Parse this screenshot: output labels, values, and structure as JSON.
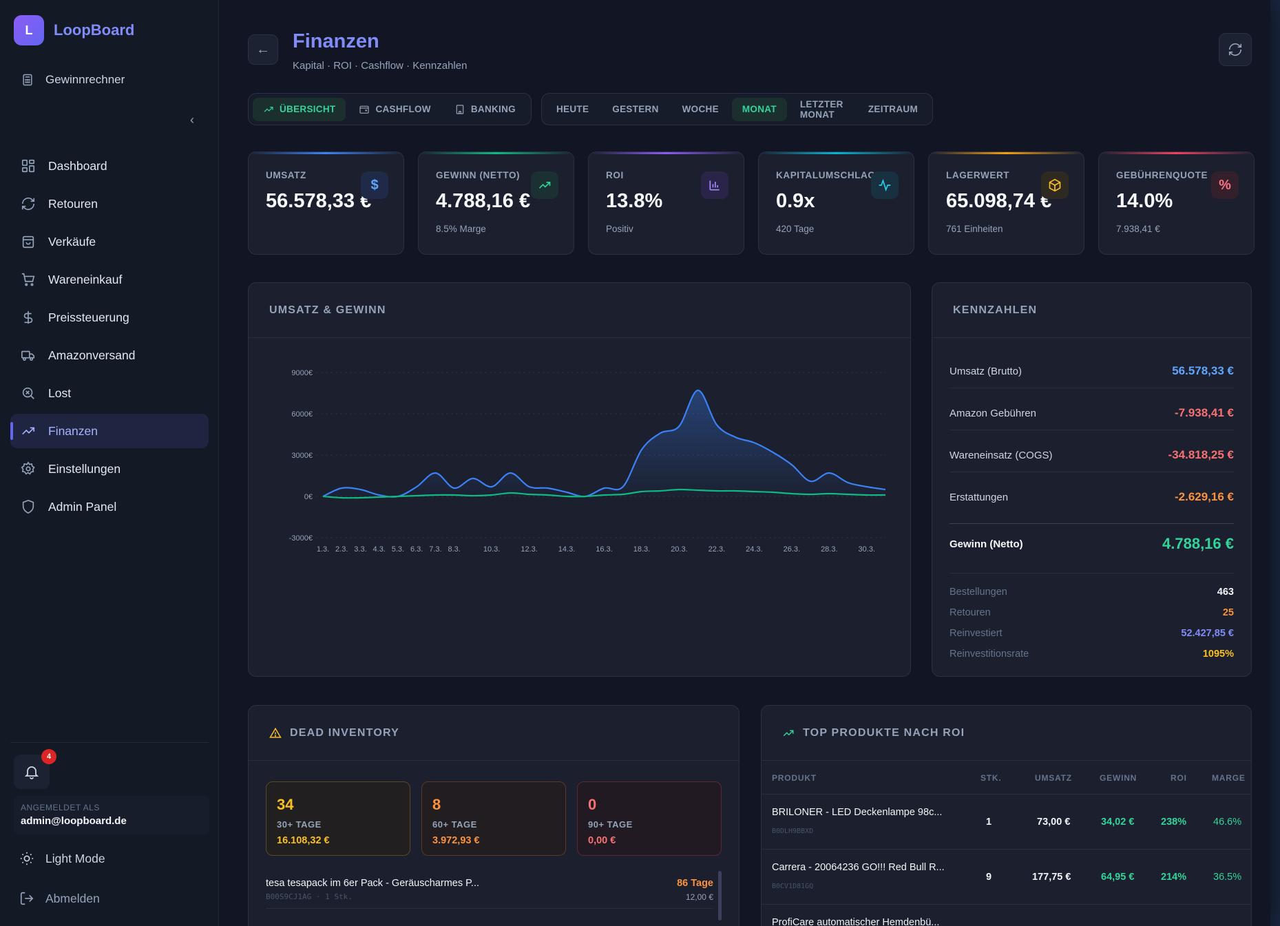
{
  "brand": {
    "logo_letter": "L",
    "name": "LoopBoard"
  },
  "sidebar": {
    "calc_label": "Gewinnrechner",
    "collapse_icon": "chevron-left-icon",
    "items": [
      {
        "label": "Dashboard",
        "icon": "grid-icon"
      },
      {
        "label": "Retouren",
        "icon": "refresh-icon"
      },
      {
        "label": "Verkäufe",
        "icon": "bag-icon"
      },
      {
        "label": "Wareneinkauf",
        "icon": "cart-icon"
      },
      {
        "label": "Preissteuerung",
        "icon": "dollar-icon"
      },
      {
        "label": "Amazonversand",
        "icon": "truck-icon"
      },
      {
        "label": "Lost",
        "icon": "search-x-icon"
      },
      {
        "label": "Finanzen",
        "icon": "trend-icon",
        "active": true
      },
      {
        "label": "Einstellungen",
        "icon": "gear-icon"
      },
      {
        "label": "Admin Panel",
        "icon": "shield-icon"
      }
    ],
    "notif_count": "4",
    "logged_in_label": "ANGEMELDET ALS",
    "email": "admin@loopboard.de",
    "light_mode": "Light Mode",
    "logout": "Abmelden"
  },
  "header": {
    "title": "Finanzen",
    "subtitle": "Kapital · ROI · Cashflow · Kennzahlen"
  },
  "view_tabs": [
    {
      "label": "ÜBERSICHT",
      "active": true
    },
    {
      "label": "CASHFLOW",
      "active": false
    },
    {
      "label": "BANKING",
      "active": false
    }
  ],
  "period_tabs": [
    {
      "label": "HEUTE"
    },
    {
      "label": "GESTERN"
    },
    {
      "label": "WOCHE"
    },
    {
      "label": "MONAT",
      "active": true
    },
    {
      "label": "LETZTER MONAT"
    },
    {
      "label": "ZEITRAUM"
    }
  ],
  "kpis": [
    {
      "label": "UMSATZ",
      "value": "56.578,33 €",
      "sub": "",
      "icon": "$",
      "accent": "#3b82f6"
    },
    {
      "label": "GEWINN (NETTO)",
      "value": "4.788,16 €",
      "sub": "8.5% Marge",
      "icon": "trend-icon",
      "accent": "#10b981"
    },
    {
      "label": "ROI",
      "value": "13.8%",
      "sub": "Positiv",
      "icon": "bar-chart-icon",
      "accent": "#8b5cf6"
    },
    {
      "label": "KAPITALUMSCHLAG",
      "value": "0.9x",
      "sub": "420 Tage",
      "icon": "activity-icon",
      "accent": "#06b6d4"
    },
    {
      "label": "LAGERWERT",
      "value": "65.098,74 €",
      "sub": "761 Einheiten",
      "icon": "box-icon",
      "accent": "#f59e0b"
    },
    {
      "label": "GEBÜHRENQUOTE",
      "value": "14.0%",
      "sub": "7.938,41 €",
      "icon": "%",
      "accent": "#f43f5e"
    }
  ],
  "chart_panel": {
    "title": "UMSATZ & GEWINN"
  },
  "chart_data": {
    "type": "area",
    "title": "",
    "y_ticks": [
      "9000€",
      "6000€",
      "3000€",
      "0€",
      "-3000€"
    ],
    "ylim": [
      -3000,
      9000
    ],
    "x_ticks": [
      "1.3.",
      "2.3.",
      "3.3.",
      "4.3.",
      "5.3.",
      "6.3.",
      "7.3.",
      "8.3.",
      "10.3.",
      "12.3.",
      "14.3.",
      "16.3.",
      "18.3.",
      "20.3.",
      "22.3.",
      "24.3.",
      "26.3.",
      "28.3.",
      "30.3."
    ],
    "x": [
      1,
      2,
      3,
      4,
      5,
      6,
      7,
      8,
      9,
      10,
      11,
      12,
      13,
      14,
      15,
      16,
      17,
      18,
      19,
      20,
      21,
      22,
      23,
      24,
      25,
      26,
      27,
      28,
      29,
      30,
      31
    ],
    "series": [
      {
        "color": "#3b82f6",
        "values": [
          0,
          600,
          500,
          100,
          0,
          700,
          1700,
          600,
          1300,
          700,
          1700,
          700,
          600,
          300,
          0,
          600,
          700,
          3400,
          4600,
          5100,
          7700,
          5200,
          4300,
          3900,
          3200,
          2300,
          1100,
          1700,
          1000,
          700,
          500
        ]
      },
      {
        "color": "#10b981",
        "values": [
          0,
          -100,
          -100,
          -50,
          0,
          50,
          100,
          100,
          50,
          100,
          250,
          150,
          100,
          0,
          0,
          100,
          150,
          350,
          400,
          500,
          450,
          400,
          400,
          350,
          300,
          200,
          150,
          200,
          150,
          100,
          100
        ]
      }
    ],
    "grid": true
  },
  "kennzahlen": {
    "title": "KENNZAHLEN",
    "rows": [
      {
        "label": "Umsatz (Brutto)",
        "value": "56.578,33 €",
        "color": "#60a5fa"
      },
      {
        "label": "Amazon Gebühren",
        "value": "-7.938,41 €",
        "color": "#f87171"
      },
      {
        "label": "Wareneinsatz (COGS)",
        "value": "-34.818,25 €",
        "color": "#f87171"
      },
      {
        "label": "Erstattungen",
        "value": "-2.629,16 €",
        "color": "#fb923c"
      }
    ],
    "total": {
      "label": "Gewinn (Netto)",
      "value": "4.788,16 €",
      "color": "#34d399"
    },
    "stats": [
      {
        "label": "Bestellungen",
        "value": "463",
        "color": "#f1f5f9"
      },
      {
        "label": "Retouren",
        "value": "25",
        "color": "#fb923c"
      },
      {
        "label": "Reinvestiert",
        "value": "52.427,85 €",
        "color": "#818cf8"
      },
      {
        "label": "Reinvestitionsrate",
        "value": "1095%",
        "color": "#fbbf24"
      }
    ]
  },
  "dead_inventory": {
    "title": "DEAD INVENTORY",
    "buckets": [
      {
        "count": "34",
        "label": "30+ TAGE",
        "value": "16.108,32 €",
        "color": "#fbbf24",
        "border": "#5a4a22",
        "bg": "#221f20"
      },
      {
        "count": "8",
        "label": "60+ TAGE",
        "value": "3.972,93 €",
        "color": "#fb923c",
        "border": "#5a3a22",
        "bg": "#221d20"
      },
      {
        "count": "0",
        "label": "90+ TAGE",
        "value": "0,00 €",
        "color": "#f87171",
        "border": "#5a2a30",
        "bg": "#221a22"
      }
    ],
    "items": [
      {
        "name": "tesa tesapack im 6er Pack - Geräuscharmes P...",
        "meta": "B00S9CJ1AG · 1 Stk.",
        "age": "86 Tage",
        "value": "12,00 €"
      }
    ]
  },
  "top_products": {
    "title": "TOP PRODUKTE NACH ROI",
    "columns": [
      "PRODUKT",
      "STK.",
      "UMSATZ",
      "GEWINN",
      "ROI",
      "MARGE"
    ],
    "rows": [
      {
        "name": "BRILONER - LED Deckenlampe 98c...",
        "asin": "B0DLH9BBXD",
        "qty": "1",
        "revenue": "73,00 €",
        "profit": "34,02 €",
        "roi": "238%",
        "margin": "46.6%"
      },
      {
        "name": "Carrera - 20064236 GO!!! Red Bull R...",
        "asin": "B0CV1D81GQ",
        "qty": "9",
        "revenue": "177,75 €",
        "profit": "64,95 €",
        "roi": "214%",
        "margin": "36.5%"
      },
      {
        "name": "ProfiCare automatischer Hemdenbü...",
        "asin": "",
        "qty": "",
        "revenue": "",
        "profit": "",
        "roi": "",
        "margin": ""
      }
    ]
  }
}
